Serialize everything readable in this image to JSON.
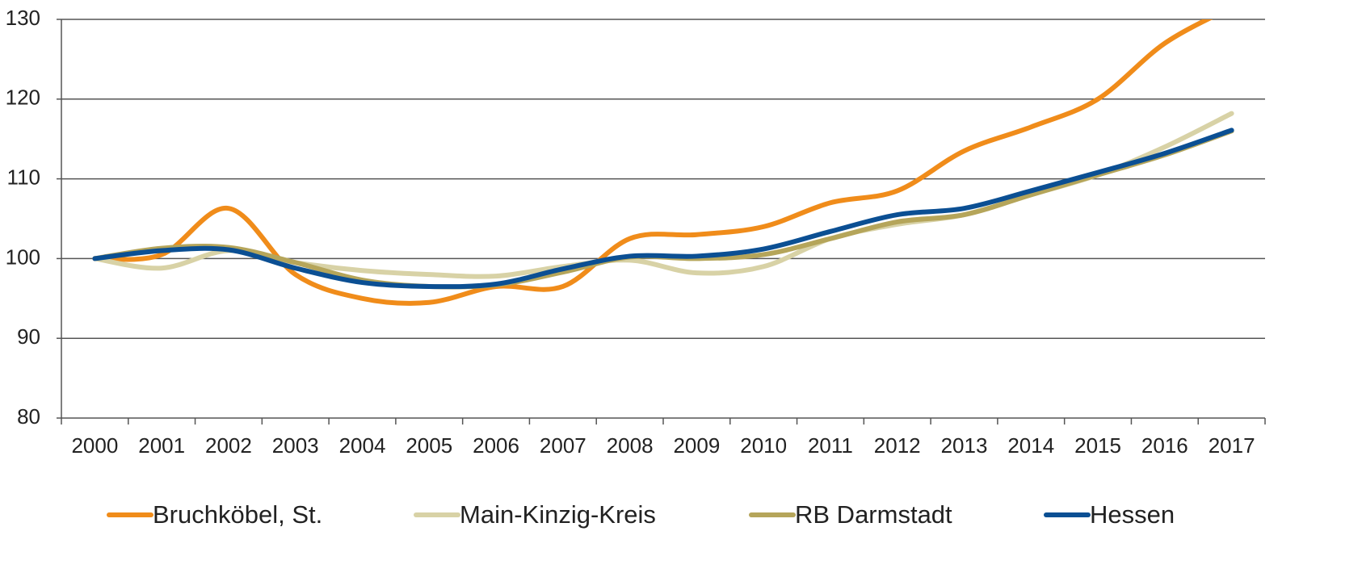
{
  "chart_data": {
    "type": "line",
    "categories": [
      "2000",
      "2001",
      "2002",
      "2003",
      "2004",
      "2005",
      "2006",
      "2007",
      "2008",
      "2009",
      "2010",
      "2011",
      "2012",
      "2013",
      "2014",
      "2015",
      "2016",
      "2017"
    ],
    "series": [
      {
        "name": "Bruchköbel, St.",
        "color": "#f08c1a",
        "values": [
          100,
          100.5,
          106.3,
          98,
          95,
          94.5,
          96.5,
          96.5,
          102.5,
          103,
          104,
          107,
          108.5,
          113.5,
          116.5,
          120,
          127,
          131.5
        ]
      },
      {
        "name": "Main-Kinzig-Kreis",
        "color": "#d8d2a6",
        "values": [
          100,
          98.8,
          101,
          99.5,
          98.5,
          98,
          97.8,
          99,
          99.8,
          98.2,
          99,
          102.5,
          104.3,
          105.5,
          108,
          110.5,
          114,
          118.2
        ]
      },
      {
        "name": "RB Darmstadt",
        "color": "#b5a55a",
        "values": [
          100,
          101.3,
          101.4,
          99.5,
          97.3,
          96.5,
          96.7,
          98.3,
          100.2,
          100,
          100.5,
          102.5,
          104.6,
          105.5,
          108,
          110.5,
          113,
          116
        ]
      },
      {
        "name": "Hessen",
        "color": "#0b4f93",
        "values": [
          100,
          101,
          101.1,
          98.8,
          97,
          96.5,
          96.8,
          98.7,
          100.3,
          100.3,
          101.2,
          103.4,
          105.5,
          106.3,
          108.5,
          110.8,
          113.2,
          116.1
        ]
      }
    ],
    "ylim": [
      80,
      130
    ],
    "yticks": [
      80,
      90,
      100,
      110,
      120,
      130
    ],
    "grid": true,
    "legend": "bottom"
  }
}
